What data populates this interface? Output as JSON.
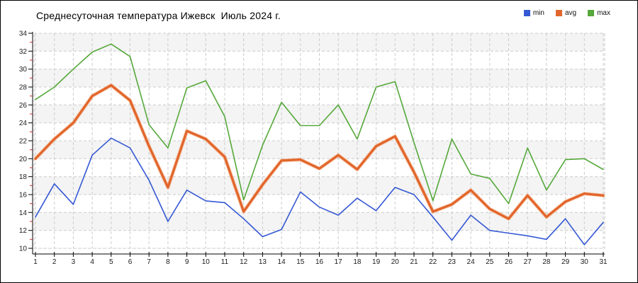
{
  "window": {
    "title": "Среднесуточная температура Ижевск  Июль 2024 г."
  },
  "chart_data": {
    "type": "line",
    "title": "Среднесуточная температура Ижевск  Июль 2024 г.",
    "xlabel": "",
    "ylabel": "",
    "x": [
      1,
      2,
      3,
      4,
      5,
      6,
      7,
      8,
      9,
      10,
      11,
      12,
      13,
      14,
      15,
      16,
      17,
      18,
      19,
      20,
      21,
      22,
      23,
      24,
      25,
      26,
      27,
      28,
      29,
      30,
      31
    ],
    "ylim": [
      10,
      34
    ],
    "yticks": [
      10,
      12,
      14,
      16,
      18,
      20,
      22,
      24,
      26,
      28,
      30,
      32,
      34
    ],
    "yticks_minor": [
      11,
      13,
      15,
      17,
      19,
      21,
      23,
      25,
      27,
      29,
      31,
      33
    ],
    "grid": "dashed, both axes",
    "legend_position": "top-right",
    "plot": {
      "background": "#ffffff",
      "band_color": "#f4f4f4",
      "grid_color": "#cccccc",
      "axis_color": "#000000",
      "minor_tick_color": "#c03030",
      "avg_halo_color": "#f6b183"
    },
    "series": [
      {
        "name": "min",
        "color": "#3558d4",
        "values": [
          13.5,
          17.2,
          14.9,
          20.4,
          22.3,
          21.2,
          17.6,
          13.0,
          16.5,
          15.3,
          15.1,
          13.3,
          11.3,
          12.1,
          16.3,
          14.6,
          13.7,
          15.6,
          14.2,
          16.8,
          16.0,
          13.5,
          10.9,
          13.7,
          12.0,
          11.7,
          11.4,
          11.0,
          13.3,
          10.4,
          12.9
        ]
      },
      {
        "name": "avg",
        "color": "#e2662c",
        "values": [
          20.0,
          22.2,
          24.0,
          27.0,
          28.2,
          26.5,
          21.4,
          16.8,
          23.1,
          22.2,
          20.2,
          14.1,
          17.1,
          19.8,
          19.9,
          18.9,
          20.4,
          18.8,
          21.4,
          22.5,
          18.5,
          14.1,
          14.9,
          16.5,
          14.4,
          13.3,
          15.9,
          13.5,
          15.2,
          16.1,
          15.9
        ]
      },
      {
        "name": "max",
        "color": "#55a83a",
        "values": [
          26.6,
          28.0,
          30.0,
          31.9,
          32.8,
          31.4,
          23.8,
          21.2,
          27.9,
          28.7,
          24.7,
          15.4,
          21.5,
          26.3,
          23.7,
          23.7,
          26.0,
          22.2,
          28.0,
          28.6,
          21.8,
          15.3,
          22.2,
          18.3,
          17.8,
          15.0,
          21.2,
          16.5,
          19.9,
          20.0,
          18.8
        ]
      }
    ]
  }
}
